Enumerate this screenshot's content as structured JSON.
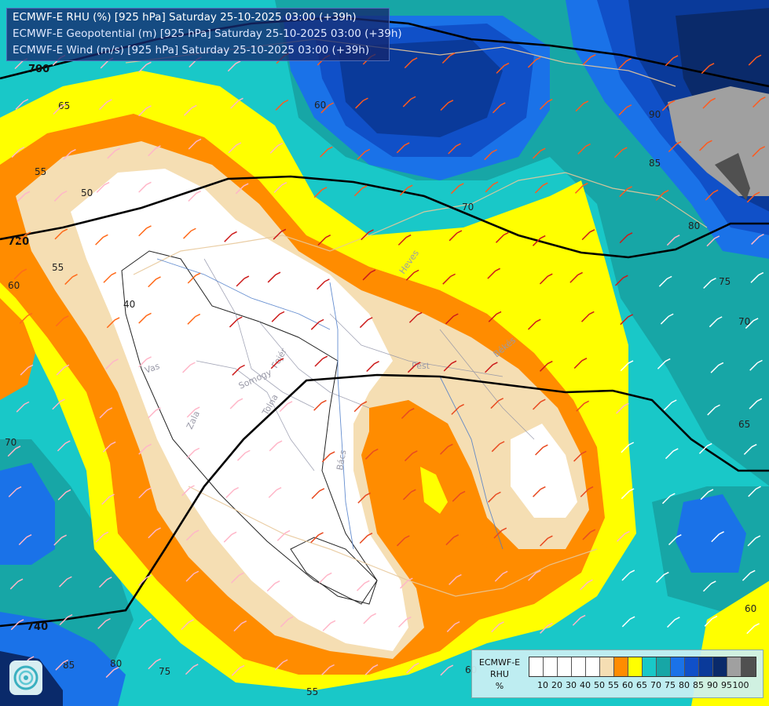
{
  "title": {
    "line1": "ECMWF-E RHU (%) [925 hPa] Saturday 25-10-2025 03:00 (+39h)",
    "line2": "ECMWF-E Geopotential (m) [925 hPa] Saturday 25-10-2025 03:00 (+39h)",
    "line3": "ECMWF-E Wind (m/s) [925 hPa] Saturday 25-10-2025 03:00 (+39h)"
  },
  "legend": {
    "title_l1": "ECMWF-E",
    "title_l2": "RHU",
    "title_l3": "%",
    "colors": [
      "#ffffff",
      "#ffffff",
      "#ffffff",
      "#ffffff",
      "#ffffff",
      "#f5deb3",
      "#ff8c00",
      "#ffff00",
      "#19c8c8",
      "#17a6a6",
      "#1a72e8",
      "#1050c8",
      "#0a3a9a",
      "#0a2a6a",
      "#a0a0a0",
      "#505050"
    ],
    "ticks": [
      "10",
      "20",
      "30",
      "40",
      "50",
      "55",
      "60",
      "65",
      "70",
      "75",
      "80",
      "85",
      "90",
      "95",
      "100"
    ]
  },
  "geopotential_labels": [
    "700",
    "720",
    "740"
  ],
  "rhu_labels": [
    "65",
    "55",
    "50",
    "40",
    "60",
    "55",
    "70",
    "60",
    "70",
    "75",
    "70",
    "80",
    "85",
    "90",
    "60",
    "65",
    "60",
    "80",
    "75",
    "55",
    "85"
  ],
  "place_labels": [
    "Pest",
    "Békés",
    "Heves",
    "Vas",
    "Zala",
    "Somogy",
    "Tolna",
    "Fejér",
    "Bács"
  ],
  "map_data": {
    "variable": "Relative humidity (%)",
    "level_hpa": 925,
    "geopotential_contours_m": [
      700,
      720,
      740
    ],
    "rhu_levels": [
      10,
      20,
      30,
      40,
      50,
      55,
      60,
      65,
      70,
      75,
      80,
      85,
      90,
      95,
      100
    ]
  }
}
